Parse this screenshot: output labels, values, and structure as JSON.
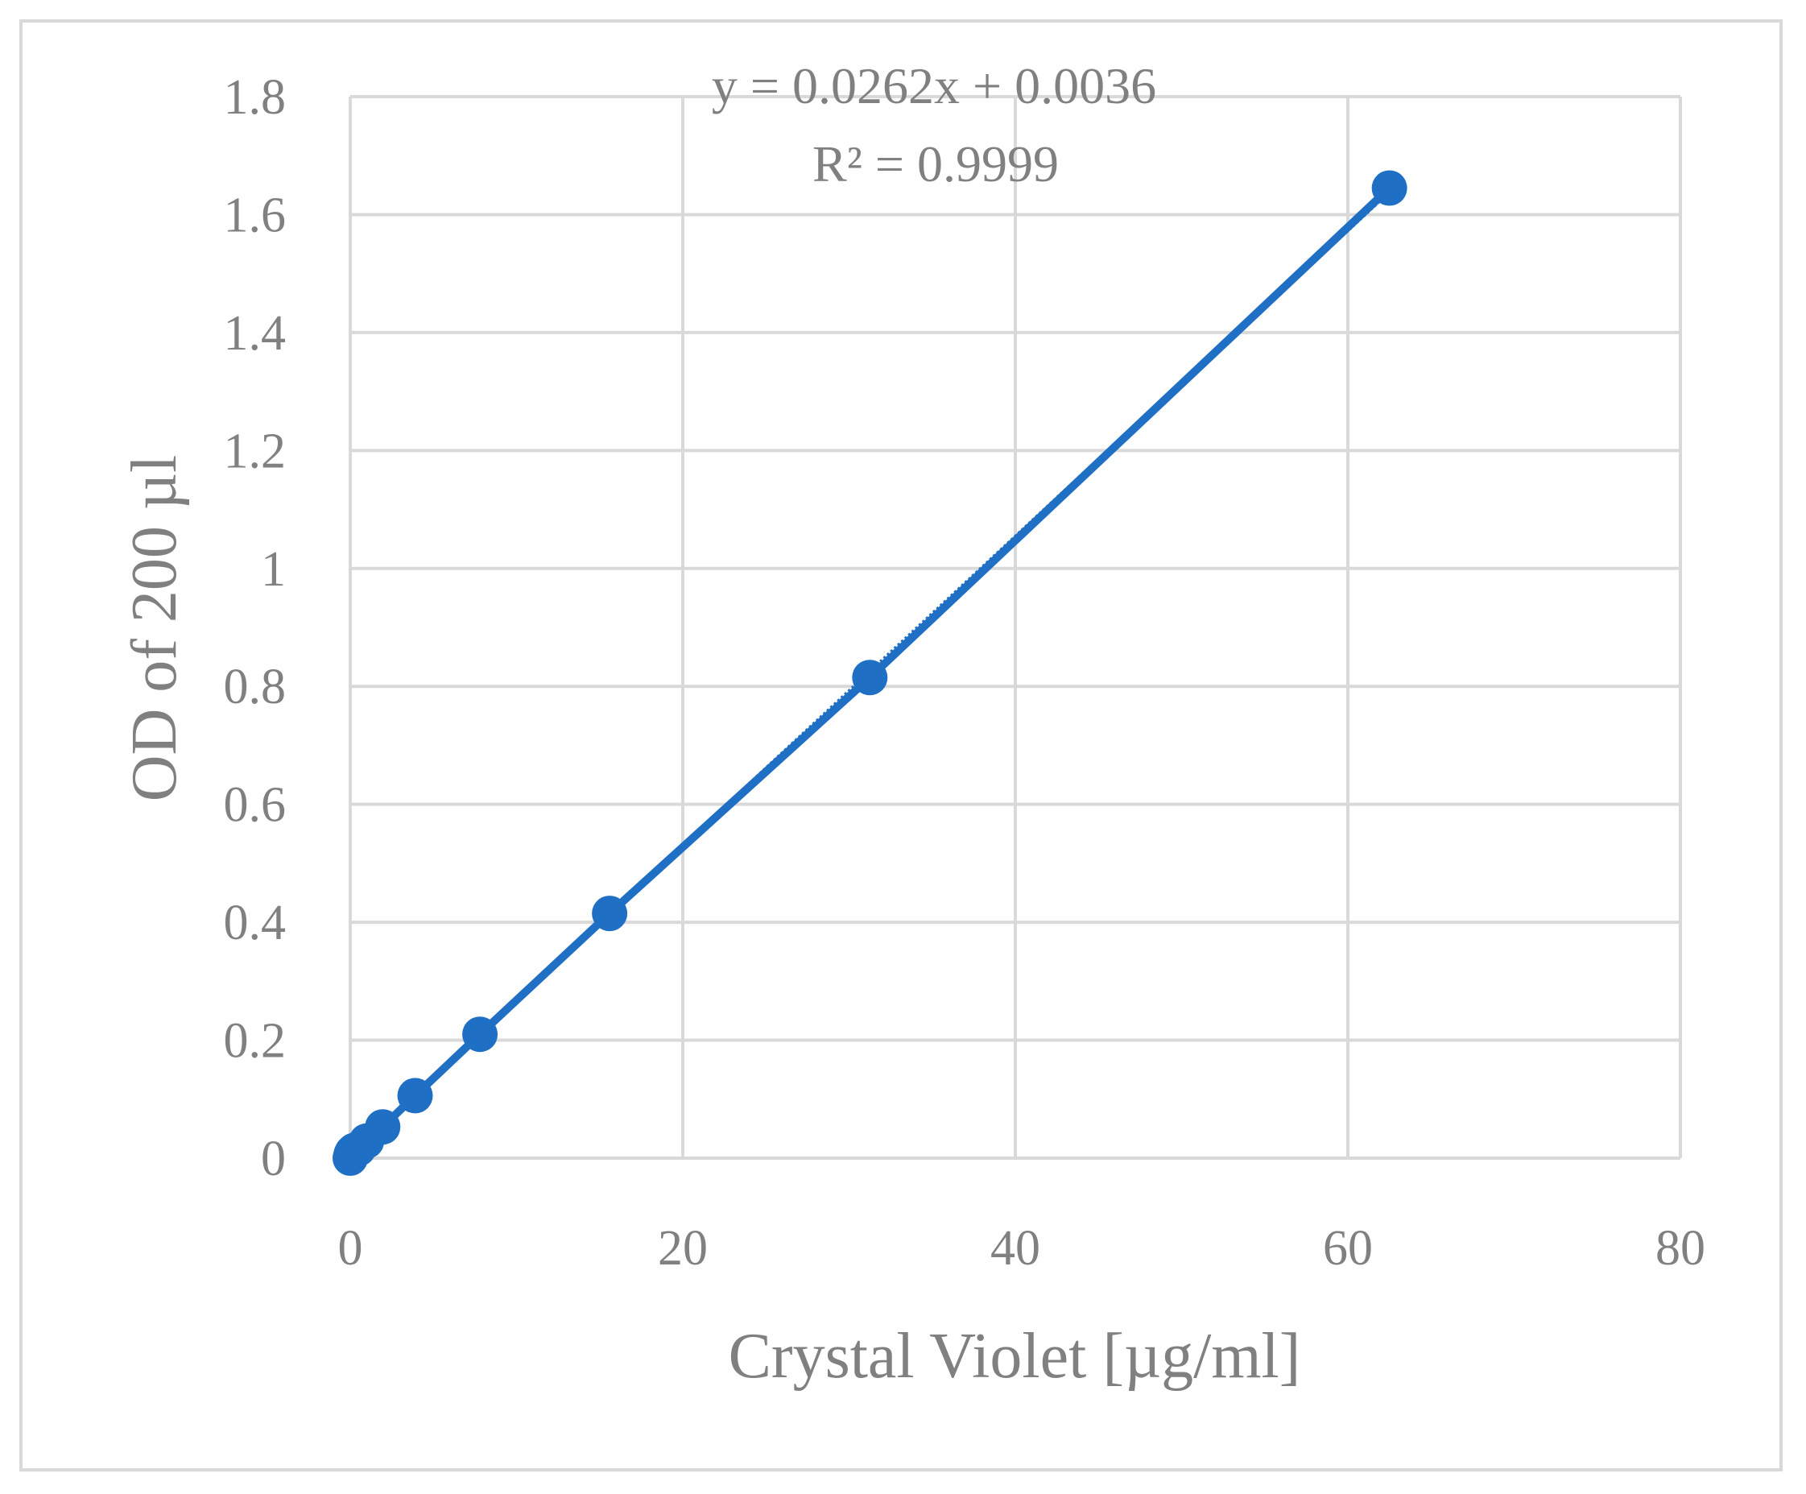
{
  "chart_data": {
    "type": "scatter",
    "title": "",
    "xlabel": "Crystal Violet [µg/ml]",
    "ylabel": "OD of 200 µl",
    "xlim": [
      0,
      80
    ],
    "ylim": [
      0,
      1.8
    ],
    "x_ticks": [
      "0",
      "20",
      "40",
      "60",
      "80"
    ],
    "y_ticks": [
      "0",
      "0.2",
      "0.4",
      "0.6",
      "0.8",
      "1",
      "1.2",
      "1.4",
      "1.6",
      "1.8"
    ],
    "grid": true,
    "series": [
      {
        "points": [
          {
            "x": 0,
            "y": 0.0
          },
          {
            "x": 0.05,
            "y": 0.006
          },
          {
            "x": 0.12,
            "y": 0.01
          },
          {
            "x": 0.24,
            "y": 0.013
          },
          {
            "x": 0.49,
            "y": 0.016
          },
          {
            "x": 0.98,
            "y": 0.029
          },
          {
            "x": 1.95,
            "y": 0.053
          },
          {
            "x": 3.9,
            "y": 0.106
          },
          {
            "x": 7.8,
            "y": 0.21
          },
          {
            "x": 15.6,
            "y": 0.415
          },
          {
            "x": 31.25,
            "y": 0.815
          },
          {
            "x": 62.5,
            "y": 1.645
          }
        ],
        "color": "#1f6fc5"
      }
    ],
    "trendline": {
      "type": "linear",
      "slope": 0.0262,
      "intercept": 0.0036,
      "equation_label": "y = 0.0262x + 0.0036",
      "r2_label": "R² = 0.9999"
    },
    "colors": {
      "series": "#1f6fc5",
      "grid": "#d9d9d9",
      "text": "#808080"
    }
  }
}
